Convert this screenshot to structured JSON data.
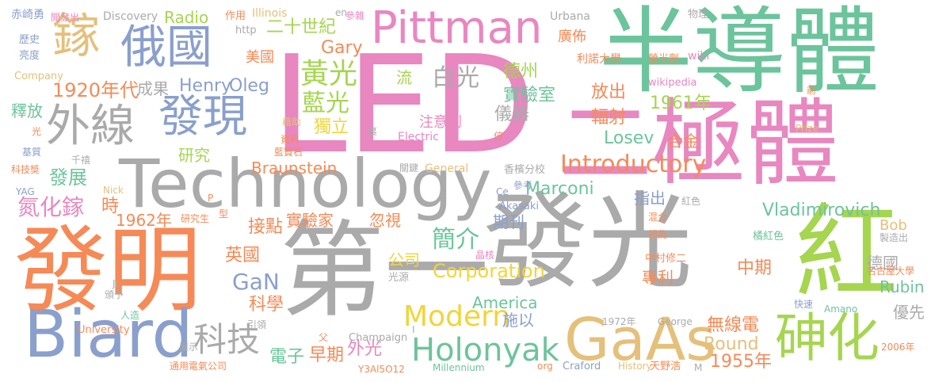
{
  "palette": {
    "pink": "#e887c0",
    "teal": "#6cc49c",
    "gray": "#aaaaaa",
    "orange": "#f58a57",
    "blue": "#8a9fcc",
    "green": "#a6d54f",
    "gold": "#e5c07b",
    "yellow": "#f2d43a"
  },
  "words": [
    {
      "text": "LED",
      "color": "pink"
    },
    {
      "text": "半導體",
      "color": "teal"
    },
    {
      "text": "二極體",
      "color": "pink"
    },
    {
      "text": "第一",
      "color": "gray"
    },
    {
      "text": "發光",
      "color": "gray"
    },
    {
      "text": "發明",
      "color": "orange"
    },
    {
      "text": "Technology",
      "color": "gray"
    },
    {
      "text": "紅",
      "color": "green"
    },
    {
      "text": "Biard",
      "color": "blue"
    },
    {
      "text": "GaAs",
      "color": "gold"
    },
    {
      "text": "Pittman",
      "color": "pink"
    },
    {
      "text": "外線",
      "color": "gray"
    },
    {
      "text": "發現",
      "color": "blue"
    },
    {
      "text": "俄國",
      "color": "blue"
    },
    {
      "text": "鎵",
      "color": "gold"
    },
    {
      "text": "砷化",
      "color": "green"
    },
    {
      "text": "Holonyak",
      "color": "teal"
    },
    {
      "text": "科技",
      "color": "gray"
    },
    {
      "text": "Modern",
      "color": "yellow"
    },
    {
      "text": "Introductory",
      "color": "orange"
    },
    {
      "text": "黃光",
      "color": "green"
    },
    {
      "text": "白光",
      "color": "gray"
    },
    {
      "text": "簡介",
      "color": "teal"
    },
    {
      "text": "Vladimirovich",
      "color": "teal"
    },
    {
      "text": "Corporation",
      "color": "yellow"
    },
    {
      "text": "GaN",
      "color": "blue"
    },
    {
      "text": "1920年代",
      "color": "orange"
    },
    {
      "text": "Henry",
      "color": "blue"
    },
    {
      "text": "Oleg",
      "color": "blue"
    },
    {
      "text": "藍光",
      "color": "green"
    },
    {
      "text": "獨立",
      "color": "yellow"
    },
    {
      "text": "德州",
      "color": "green"
    },
    {
      "text": "實驗室",
      "color": "teal"
    },
    {
      "text": "儀器",
      "color": "gray"
    },
    {
      "text": "放出",
      "color": "orange"
    },
    {
      "text": "輻射",
      "color": "orange"
    },
    {
      "text": "1961年",
      "color": "green"
    },
    {
      "text": "注意到",
      "color": "pink"
    },
    {
      "text": "Losev",
      "color": "teal"
    },
    {
      "text": "合金",
      "color": "orange"
    },
    {
      "text": "Braunstein",
      "color": "orange"
    },
    {
      "text": "Marconi",
      "color": "teal"
    },
    {
      "text": "二十世紀",
      "color": "green"
    },
    {
      "text": "美國",
      "color": "orange"
    },
    {
      "text": "Gary",
      "color": "orange"
    },
    {
      "text": "Radio",
      "color": "green"
    },
    {
      "text": "成果",
      "color": "gray"
    },
    {
      "text": "釋放",
      "color": "teal"
    },
    {
      "text": "研究",
      "color": "green"
    },
    {
      "text": "發展",
      "color": "teal"
    },
    {
      "text": "氮化鎵",
      "color": "pink"
    },
    {
      "text": "時",
      "color": "orange"
    },
    {
      "text": "1962年",
      "color": "orange"
    },
    {
      "text": "接點",
      "color": "orange"
    },
    {
      "text": "實驗家",
      "color": "orange"
    },
    {
      "text": "忽視",
      "color": "orange"
    },
    {
      "text": "期刊",
      "color": "blue"
    },
    {
      "text": "指出",
      "color": "blue"
    },
    {
      "text": "英國",
      "color": "orange"
    },
    {
      "text": "公司",
      "color": "yellow"
    },
    {
      "text": "中期",
      "color": "orange"
    },
    {
      "text": "專利",
      "color": "orange"
    },
    {
      "text": "科學",
      "color": "orange"
    },
    {
      "text": "America",
      "color": "teal"
    },
    {
      "text": "施以",
      "color": "blue"
    },
    {
      "text": "電子",
      "color": "teal"
    },
    {
      "text": "早期",
      "color": "orange"
    },
    {
      "text": "外光",
      "color": "pink"
    },
    {
      "text": "無線電",
      "color": "orange"
    },
    {
      "text": "Round",
      "color": "gold"
    },
    {
      "text": "1955年",
      "color": "orange"
    },
    {
      "text": "Rubin",
      "color": "teal"
    },
    {
      "text": "優先",
      "color": "gray"
    },
    {
      "text": "德國",
      "color": "gray"
    },
    {
      "text": "Bob",
      "color": "gold"
    },
    {
      "text": "廣佈",
      "color": "orange"
    },
    {
      "text": "流",
      "color": "green"
    },
    {
      "text": "作用",
      "color": "orange"
    },
    {
      "text": "Illinois",
      "color": "gold"
    },
    {
      "text": "en",
      "color": "gray"
    },
    {
      "text": "參雜",
      "color": "pink"
    },
    {
      "text": "Urbana",
      "color": "gray"
    },
    {
      "text": "物理",
      "color": "gray"
    },
    {
      "text": "利諾大學",
      "color": "orange"
    },
    {
      "text": "螢光劑",
      "color": "orange"
    },
    {
      "text": "wiki",
      "color": "pink"
    },
    {
      "text": "wikipedia",
      "color": "pink"
    },
    {
      "text": "Discovery",
      "color": "gray"
    },
    {
      "text": "赤崎勇",
      "color": "blue"
    },
    {
      "text": "開發出",
      "color": "pink"
    },
    {
      "text": "http",
      "color": "gray"
    },
    {
      "text": "歷史",
      "color": "blue"
    },
    {
      "text": "亮度",
      "color": "blue"
    },
    {
      "text": "Company",
      "color": "gold"
    },
    {
      "text": "光",
      "color": "orange"
    },
    {
      "text": "藉助",
      "color": "gold"
    },
    {
      "text": "資料",
      "color": "orange"
    },
    {
      "text": "藍寶石",
      "color": "orange"
    },
    {
      "text": "基質",
      "color": "blue"
    },
    {
      "text": "科技獎",
      "color": "orange"
    },
    {
      "text": "千禧",
      "color": "gray"
    },
    {
      "text": "Electric",
      "color": "pink"
    },
    {
      "text": "關鍵",
      "color": "gray"
    },
    {
      "text": "General",
      "color": "gold"
    },
    {
      "text": "香檳分校",
      "color": "gray"
    },
    {
      "text": "Ce",
      "color": "blue"
    },
    {
      "text": "參考",
      "color": "blue"
    },
    {
      "text": "Akasaki",
      "color": "blue"
    },
    {
      "text": "YAG",
      "color": "blue"
    },
    {
      "text": "Nick",
      "color": "gold"
    },
    {
      "text": "研究生",
      "color": "orange"
    },
    {
      "text": "晶核",
      "color": "pink"
    },
    {
      "text": "光源",
      "color": "gray"
    },
    {
      "text": "中村修二",
      "color": "orange"
    },
    {
      "text": "紅色",
      "color": "gray"
    },
    {
      "text": "混合",
      "color": "orange"
    },
    {
      "text": "橘紅色",
      "color": "teal"
    },
    {
      "text": "視為",
      "color": "orange"
    },
    {
      "text": "製造出",
      "color": "gray"
    },
    {
      "text": "名古屋大學",
      "color": "orange"
    },
    {
      "text": "快速",
      "color": "blue"
    },
    {
      "text": "Amano",
      "color": "teal"
    },
    {
      "text": "University",
      "color": "orange"
    },
    {
      "text": "Champaign",
      "color": "gray"
    },
    {
      "text": "1972年",
      "color": "gray"
    },
    {
      "text": "George",
      "color": "gray"
    },
    {
      "text": "2006年",
      "color": "orange"
    },
    {
      "text": "展示",
      "color": "gray"
    },
    {
      "text": "通用電氣公司",
      "color": "orange"
    },
    {
      "text": "Y3Al5O12",
      "color": "orange"
    },
    {
      "text": "Millennium",
      "color": "teal"
    },
    {
      "text": "org",
      "color": "orange"
    },
    {
      "text": "Craford",
      "color": "blue"
    },
    {
      "text": "History",
      "color": "gold"
    },
    {
      "text": "天野浩",
      "color": "orange"
    },
    {
      "text": "M",
      "color": "gray"
    },
    {
      "text": "人造",
      "color": "teal"
    },
    {
      "text": "頒予",
      "color": "gray"
    },
    {
      "text": "Jr",
      "color": "gray"
    },
    {
      "text": "引領",
      "color": "gray"
    },
    {
      "text": "Prize",
      "color": "gold"
    },
    {
      "text": "前",
      "color": "orange"
    },
    {
      "text": "倍",
      "color": "orange"
    },
    {
      "text": "裏",
      "color": "gray"
    },
    {
      "text": "型",
      "color": "orange"
    },
    {
      "text": "P",
      "color": "orange"
    },
    {
      "text": "H",
      "color": "orange"
    },
    {
      "text": "父",
      "color": "orange"
    },
    {
      "text": "I",
      "color": "gray"
    }
  ]
}
